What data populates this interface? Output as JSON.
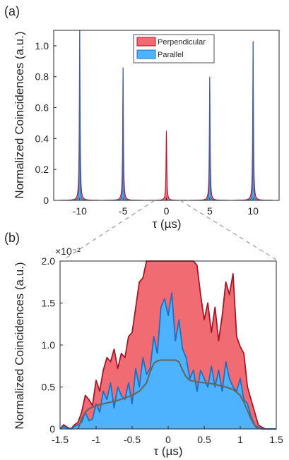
{
  "chart_data": [
    {
      "type": "area",
      "panel_label": "(a)",
      "xlabel": "τ (µs)",
      "ylabel": "Normalized Coincidences (a.u.)",
      "xlim": [
        -13,
        13
      ],
      "ylim": [
        0,
        1.1
      ],
      "xticks": [
        "-10",
        "-5",
        "0",
        "5",
        "10"
      ],
      "xtick_values": [
        -10,
        -5,
        0,
        5,
        10
      ],
      "yticks": [
        "0",
        "0.2",
        "0.4",
        "0.6",
        "0.8",
        "1.0"
      ],
      "ytick_values": [
        0,
        0.2,
        0.4,
        0.6,
        0.8,
        1.0
      ],
      "legend_position": "top-center",
      "series": [
        {
          "name": "Perpendicular",
          "color": "#f16b72",
          "edge_color": "#b0172a",
          "peaks": [
            {
              "x": -10,
              "y": 1.1
            },
            {
              "x": -5,
              "y": 0.86
            },
            {
              "x": 0,
              "y": 0.45
            },
            {
              "x": 5,
              "y": 0.8
            },
            {
              "x": 10,
              "y": 1.03
            }
          ]
        },
        {
          "name": "Parallel",
          "color": "#4db3ff",
          "edge_color": "#1f6fc0",
          "peaks": [
            {
              "x": -10,
              "y": 1.09
            },
            {
              "x": -5,
              "y": 0.85
            },
            {
              "x": 0,
              "y": 0.016
            },
            {
              "x": 5,
              "y": 0.79
            },
            {
              "x": 10,
              "y": 1.02
            }
          ]
        }
      ]
    },
    {
      "type": "area",
      "panel_label": "(b)",
      "xlabel": "τ (µs)",
      "ylabel": "Normalized Coincidences (a.u.)",
      "y_multiplier": "×10⁻²",
      "xlim": [
        -1.5,
        1.5
      ],
      "ylim": [
        0,
        2.0
      ],
      "xticks": [
        "-1.5",
        "-1",
        "-0.5",
        "0",
        "0.5",
        "1",
        "1.5"
      ],
      "xtick_values": [
        -1.5,
        -1,
        -0.5,
        0,
        0.5,
        1,
        1.5
      ],
      "yticks": [
        "0",
        "0.5",
        "1.0",
        "1.5",
        "2.0"
      ],
      "ytick_values": [
        0,
        0.5,
        1.0,
        1.5,
        2.0
      ],
      "series": [
        {
          "name": "Perpendicular",
          "color": "#f16b72",
          "edge_color": "#a3172a",
          "x": [
            -1.5,
            -1.45,
            -1.4,
            -1.35,
            -1.3,
            -1.25,
            -1.2,
            -1.15,
            -1.1,
            -1.05,
            -1.0,
            -0.95,
            -0.9,
            -0.85,
            -0.8,
            -0.75,
            -0.7,
            -0.65,
            -0.6,
            -0.55,
            -0.5,
            -0.45,
            -0.4,
            -0.35,
            -0.3,
            -0.25,
            -0.2,
            -0.15,
            0.2,
            0.25,
            0.3,
            0.35,
            0.4,
            0.45,
            0.5,
            0.55,
            0.6,
            0.65,
            0.7,
            0.75,
            0.8,
            0.85,
            0.9,
            0.95,
            1.0,
            1.05,
            1.1,
            1.15,
            1.2,
            1.25,
            1.3,
            1.35,
            1.4,
            1.45,
            1.5
          ],
          "y": [
            0.0,
            0.05,
            0.02,
            0.0,
            0.05,
            0.08,
            0.2,
            0.4,
            0.35,
            0.28,
            0.58,
            0.45,
            0.7,
            0.85,
            0.8,
            0.95,
            0.72,
            0.9,
            0.85,
            1.1,
            1.15,
            1.45,
            1.75,
            1.8,
            2.0,
            2.0,
            2.0,
            2.0,
            2.0,
            2.0,
            2.0,
            2.0,
            1.95,
            1.6,
            1.3,
            1.5,
            1.15,
            1.45,
            1.05,
            1.35,
            1.75,
            1.6,
            1.85,
            1.1,
            0.98,
            0.9,
            0.5,
            0.35,
            0.2,
            0.05,
            0.02,
            0.0,
            0.0,
            0.0,
            0.0
          ]
        },
        {
          "name": "Parallel",
          "color": "#4db3ff",
          "edge_color": "#1f6fc0",
          "x": [
            -1.5,
            -1.45,
            -1.4,
            -1.35,
            -1.3,
            -1.25,
            -1.2,
            -1.15,
            -1.1,
            -1.05,
            -1.0,
            -0.95,
            -0.9,
            -0.85,
            -0.8,
            -0.75,
            -0.7,
            -0.65,
            -0.6,
            -0.55,
            -0.5,
            -0.45,
            -0.4,
            -0.35,
            -0.3,
            -0.25,
            -0.2,
            -0.15,
            -0.1,
            -0.05,
            0.0,
            0.05,
            0.1,
            0.15,
            0.2,
            0.25,
            0.3,
            0.35,
            0.4,
            0.45,
            0.5,
            0.55,
            0.6,
            0.65,
            0.7,
            0.75,
            0.8,
            0.85,
            0.9,
            0.95,
            1.0,
            1.05,
            1.1,
            1.15,
            1.2,
            1.25,
            1.3,
            1.35,
            1.4,
            1.45,
            1.5
          ],
          "y": [
            0.0,
            0.03,
            0.01,
            0.0,
            0.03,
            0.05,
            0.08,
            0.2,
            0.1,
            0.12,
            0.3,
            0.2,
            0.45,
            0.35,
            0.55,
            0.25,
            0.5,
            0.4,
            0.35,
            0.55,
            0.3,
            0.72,
            0.5,
            0.85,
            0.65,
            0.72,
            1.1,
            0.9,
            1.45,
            1.55,
            1.35,
            1.62,
            1.05,
            1.3,
            0.95,
            0.85,
            0.6,
            0.7,
            0.45,
            0.7,
            0.6,
            0.5,
            0.75,
            0.5,
            0.7,
            0.45,
            0.8,
            0.6,
            0.5,
            0.45,
            0.6,
            0.35,
            0.3,
            0.15,
            0.05,
            0.02,
            0.0,
            0.0,
            0.0,
            0.0,
            0.0
          ]
        },
        {
          "name": "",
          "color": "#666666",
          "x": [
            -1.25,
            -1.2,
            -1.15,
            -1.1,
            -1.0,
            -0.9,
            -0.8,
            -0.7,
            -0.6,
            -0.5,
            -0.4,
            -0.3,
            -0.25,
            -0.2,
            -0.15,
            -0.1,
            0.0,
            0.1,
            0.15,
            0.2,
            0.25,
            0.3,
            0.4,
            0.5,
            0.6,
            0.7,
            0.8,
            0.9,
            1.0,
            1.05,
            1.1,
            1.15,
            1.2,
            1.25
          ],
          "y": [
            0.0,
            0.12,
            0.2,
            0.24,
            0.28,
            0.3,
            0.32,
            0.34,
            0.37,
            0.4,
            0.45,
            0.55,
            0.68,
            0.78,
            0.81,
            0.82,
            0.82,
            0.82,
            0.8,
            0.7,
            0.62,
            0.58,
            0.56,
            0.55,
            0.54,
            0.52,
            0.5,
            0.47,
            0.4,
            0.32,
            0.22,
            0.12,
            0.04,
            0.0
          ]
        }
      ]
    }
  ]
}
